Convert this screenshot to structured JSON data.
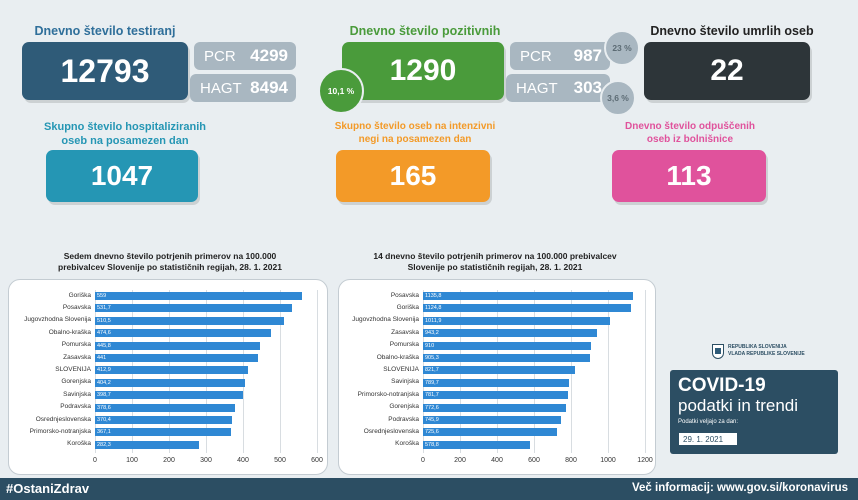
{
  "testing": {
    "title": "Dnevno število testiranj",
    "total": "12793",
    "pcr_label": "PCR",
    "pcr_value": "4299",
    "hagt_label": "HAGT",
    "hagt_value": "8494"
  },
  "positive": {
    "title": "Dnevno število pozitivnih",
    "total": "1290",
    "share": "10,1 %",
    "pcr_label": "PCR",
    "pcr_value": "987",
    "pcr_share": "23 %",
    "hagt_label": "HAGT",
    "hagt_value": "303",
    "hagt_share": "3,6 %"
  },
  "deaths": {
    "title": "Dnevno število umrlih oseb",
    "total": "22"
  },
  "hospital": {
    "title_line1": "Skupno število hospitaliziranih",
    "title_line2": "oseb na posamezen dan",
    "total": "1047"
  },
  "icu": {
    "title_line1": "Skupno število oseb na intenzivni",
    "title_line2": "negi na posamezen dan",
    "total": "165"
  },
  "discharged": {
    "title_line1": "Dnevno število odpuščenih",
    "title_line2": "oseb iz bolnišnice",
    "total": "113"
  },
  "brand": {
    "org_line1": "REPUBLIKA SLOVENIJA",
    "org_line2": "VLADA REPUBLIKE SLOVENIJE",
    "title_line1": "COVID-19",
    "title_line2": "podatki in trendi",
    "valid_label": "Podatki veljajo za dan:",
    "date": "29. 1. 2021"
  },
  "footer": {
    "hashtag": "#OstaniZdrav",
    "more_info": "Več informacij: www.gov.si/koronavirus"
  },
  "colors": {
    "navy": "#2f5b78",
    "green": "#4a9b3b",
    "dark": "#2d3539",
    "teal": "#2596b4",
    "orange": "#f39a28",
    "pink": "#e0529c",
    "bar": "#2f88d4"
  },
  "chart_data": [
    {
      "type": "bar",
      "orientation": "horizontal",
      "title_line1": "Sedem dnevno število potrjenih primerov na 100.000",
      "title_line2": "prebivalcev Slovenije po statističnih regijah, 28. 1. 2021",
      "categories": [
        "Goriška",
        "Posavska",
        "Jugovzhodna Slovenija",
        "Obalno-kraška",
        "Pomurska",
        "Zasavska",
        "SLOVENIJA",
        "Gorenjska",
        "Savinjska",
        "Podravska",
        "Osrednjeslovenska",
        "Primorsko-notranjska",
        "Koroška"
      ],
      "values": [
        559,
        531.7,
        510.5,
        474.6,
        445.8,
        441,
        412.9,
        404.2,
        398.7,
        378.6,
        370.4,
        367.1,
        282.3
      ],
      "value_labels": [
        "559",
        "531,7",
        "510,5",
        "474,6",
        "445,8",
        "441",
        "412,9",
        "404,2",
        "398,7",
        "378,6",
        "370,4",
        "367,1",
        "282,3"
      ],
      "xlim": [
        0,
        600
      ],
      "ticks": [
        "0",
        "100",
        "200",
        "300",
        "400",
        "500",
        "600"
      ]
    },
    {
      "type": "bar",
      "orientation": "horizontal",
      "title_line1": "14 dnevno število potrjenih primerov na 100.000 prebivalcev",
      "title_line2": "Slovenije po statističnih regijah, 28. 1. 2021",
      "categories": [
        "Posavska",
        "Goriška",
        "Jugovzhodna Slovenija",
        "Zasavska",
        "Pomurska",
        "Obalno-kraška",
        "SLOVENIJA",
        "Savinjska",
        "Primorsko-notranjska",
        "Gorenjska",
        "Podravska",
        "Osrednjeslovenska",
        "Koroška"
      ],
      "values": [
        1135.8,
        1124.8,
        1011.9,
        943.2,
        910,
        905.3,
        821.7,
        789.7,
        781.7,
        772.6,
        745.9,
        725.6,
        578.8
      ],
      "value_labels": [
        "1135,8",
        "1124,8",
        "1011,9",
        "943,2",
        "910",
        "905,3",
        "821,7",
        "789,7",
        "781,7",
        "772,6",
        "745,9",
        "725,6",
        "578,8"
      ],
      "xlim": [
        0,
        1200
      ],
      "ticks": [
        "0",
        "200",
        "400",
        "600",
        "800",
        "1000",
        "1200"
      ]
    }
  ]
}
